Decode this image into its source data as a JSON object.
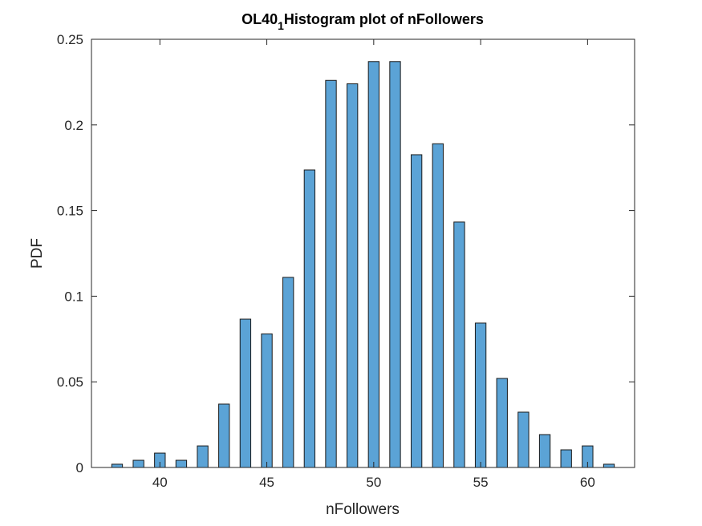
{
  "chart_data": {
    "type": "histogram",
    "title_parts": [
      "OL40",
      "1",
      "Histogram plot of nFollowers"
    ],
    "xlabel": "nFollowers",
    "ylabel": "PDF",
    "bins": [
      37.75,
      38.25,
      38.75,
      39.25,
      39.75,
      40.25,
      40.75,
      41.25,
      41.75,
      42.25,
      42.75,
      43.25,
      43.75,
      44.25,
      44.75,
      45.25,
      45.75,
      46.25,
      46.75,
      47.25,
      47.75,
      48.25,
      48.75,
      49.25,
      49.75,
      50.25,
      50.75,
      51.25,
      51.75,
      52.25,
      52.75,
      53.25,
      53.75,
      54.25,
      54.75,
      55.25,
      55.75,
      56.25,
      56.75,
      57.25,
      57.75,
      58.25,
      58.75,
      59.25,
      59.75,
      60.25,
      60.75,
      61.25
    ],
    "values": [
      0.0019,
      0,
      0.0042,
      0,
      0.0084,
      0,
      0.0042,
      0,
      0.0126,
      0,
      0.037,
      0,
      0.0866,
      0,
      0.078,
      0,
      0.111,
      0,
      0.1737,
      0,
      0.226,
      0,
      0.224,
      0,
      0.237,
      0,
      0.237,
      0,
      0.1826,
      0,
      0.189,
      0,
      0.1433,
      0,
      0.0843,
      0,
      0.052,
      0,
      0.0323,
      0,
      0.0192,
      0,
      0.0103,
      0,
      0.0126,
      0,
      0.0019
    ],
    "color": "#5ba3d6",
    "xlim": [
      36.8,
      62.2
    ],
    "xticks": [
      40,
      45,
      50,
      55,
      60
    ],
    "ylim": [
      0,
      0.25
    ],
    "yticks": [
      0,
      0.05,
      0.1,
      0.15,
      0.2,
      0.25
    ]
  }
}
